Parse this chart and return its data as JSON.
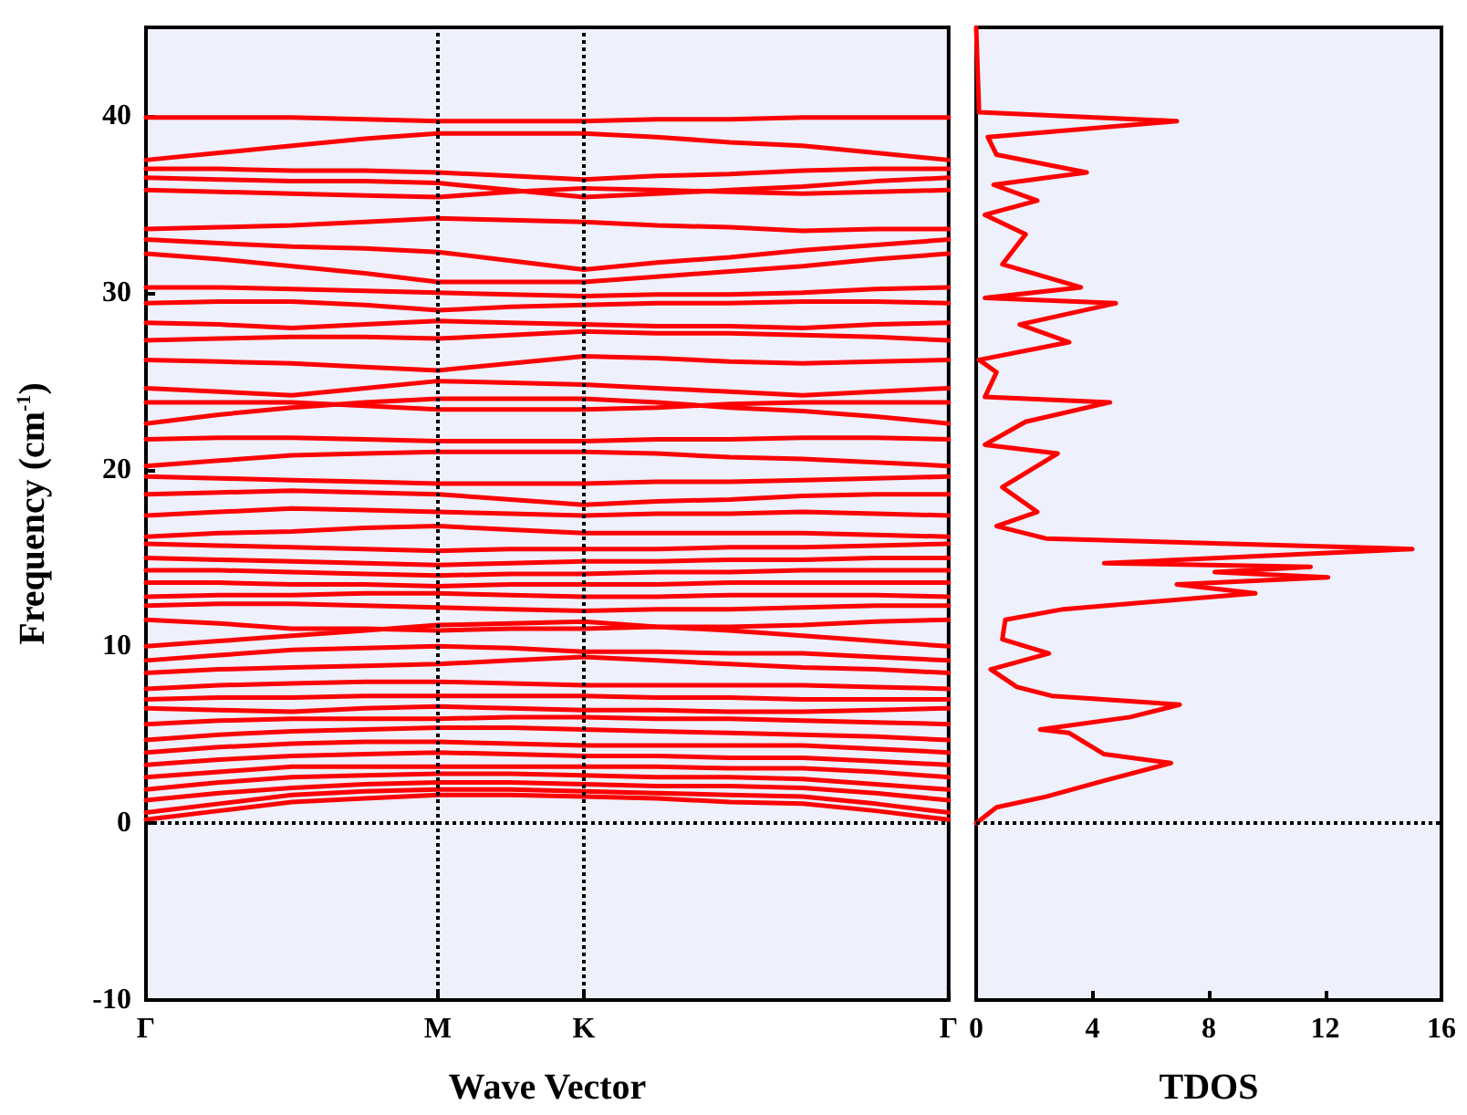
{
  "chart_data": [
    {
      "type": "line",
      "xlabel": "Wave Vector",
      "ylabel": "Frequency (cm$^{-1}$)",
      "categories": [
        "Γ",
        null,
        null,
        null,
        "M",
        null,
        "K",
        null,
        null,
        null,
        null,
        "Γ"
      ],
      "ylim": [
        -10,
        45
      ],
      "yticks": [
        -10,
        0,
        10,
        20,
        30,
        40
      ],
      "grid": false,
      "line_style": "solid",
      "ref_lines": [
        {
          "axis": "x",
          "value": "M",
          "color": "#000000",
          "line_style": "dotted"
        },
        {
          "axis": "x",
          "value": "K",
          "color": "#000000",
          "line_style": "dotted"
        },
        {
          "axis": "y",
          "value": 0,
          "color": "#000000",
          "line_style": "dotted"
        }
      ],
      "series": [
        {
          "color": "#ff0000",
          "values": [
            39.9,
            39.9,
            39.9,
            39.8,
            39.7,
            39.7,
            39.7,
            39.8,
            39.8,
            39.9,
            39.9,
            39.9
          ]
        },
        {
          "color": "#ff0000",
          "values": [
            37.5,
            37.9,
            38.3,
            38.7,
            39.0,
            39.0,
            39.0,
            38.8,
            38.5,
            38.3,
            37.9,
            37.5
          ]
        },
        {
          "color": "#ff0000",
          "values": [
            37.0,
            37.0,
            36.9,
            36.9,
            36.8,
            36.6,
            36.4,
            36.6,
            36.7,
            36.9,
            37.0,
            37.0
          ]
        },
        {
          "color": "#ff0000",
          "values": [
            36.5,
            36.4,
            36.3,
            36.3,
            36.2,
            35.8,
            35.4,
            35.6,
            35.8,
            36.0,
            36.3,
            36.5
          ]
        },
        {
          "color": "#ff0000",
          "values": [
            35.8,
            35.7,
            35.6,
            35.5,
            35.4,
            35.7,
            35.9,
            35.8,
            35.7,
            35.6,
            35.7,
            35.8
          ]
        },
        {
          "color": "#ff0000",
          "values": [
            33.6,
            33.7,
            33.8,
            34.0,
            34.2,
            34.1,
            34.0,
            33.8,
            33.7,
            33.5,
            33.6,
            33.6
          ]
        },
        {
          "color": "#ff0000",
          "values": [
            33.0,
            32.8,
            32.6,
            32.5,
            32.3,
            31.8,
            31.3,
            31.7,
            32.0,
            32.4,
            32.7,
            33.0
          ]
        },
        {
          "color": "#ff0000",
          "values": [
            32.2,
            31.9,
            31.5,
            31.1,
            30.6,
            30.6,
            30.6,
            30.9,
            31.2,
            31.5,
            31.9,
            32.2
          ]
        },
        {
          "color": "#ff0000",
          "values": [
            30.3,
            30.3,
            30.2,
            30.1,
            30.0,
            29.9,
            29.8,
            29.9,
            29.9,
            30.0,
            30.2,
            30.3
          ]
        },
        {
          "color": "#ff0000",
          "values": [
            29.4,
            29.5,
            29.5,
            29.3,
            29.0,
            29.2,
            29.3,
            29.4,
            29.4,
            29.5,
            29.5,
            29.4
          ]
        },
        {
          "color": "#ff0000",
          "values": [
            28.3,
            28.2,
            28.0,
            28.2,
            28.4,
            28.3,
            28.2,
            28.1,
            28.1,
            28.0,
            28.2,
            28.3
          ]
        },
        {
          "color": "#ff0000",
          "values": [
            27.3,
            27.4,
            27.5,
            27.5,
            27.4,
            27.6,
            27.8,
            27.7,
            27.7,
            27.6,
            27.5,
            27.3
          ]
        },
        {
          "color": "#ff0000",
          "values": [
            26.2,
            26.1,
            26.0,
            25.8,
            25.6,
            26.0,
            26.4,
            26.3,
            26.1,
            26.0,
            26.1,
            26.2
          ]
        },
        {
          "color": "#ff0000",
          "values": [
            24.6,
            24.4,
            24.2,
            24.6,
            25.0,
            24.9,
            24.8,
            24.6,
            24.4,
            24.2,
            24.4,
            24.6
          ]
        },
        {
          "color": "#ff0000",
          "values": [
            23.8,
            23.8,
            23.8,
            23.6,
            23.4,
            23.4,
            23.4,
            23.5,
            23.7,
            23.8,
            23.8,
            23.8
          ]
        },
        {
          "color": "#ff0000",
          "values": [
            22.6,
            23.1,
            23.5,
            23.8,
            24.0,
            24.0,
            24.0,
            23.8,
            23.5,
            23.3,
            23.0,
            22.6
          ]
        },
        {
          "color": "#ff0000",
          "values": [
            21.7,
            21.8,
            21.8,
            21.7,
            21.6,
            21.6,
            21.6,
            21.7,
            21.7,
            21.8,
            21.8,
            21.7
          ]
        },
        {
          "color": "#ff0000",
          "values": [
            20.2,
            20.5,
            20.8,
            20.9,
            21.0,
            21.0,
            21.0,
            20.9,
            20.7,
            20.6,
            20.4,
            20.2
          ]
        },
        {
          "color": "#ff0000",
          "values": [
            19.6,
            19.5,
            19.4,
            19.3,
            19.2,
            19.2,
            19.2,
            19.3,
            19.3,
            19.4,
            19.5,
            19.6
          ]
        },
        {
          "color": "#ff0000",
          "values": [
            18.6,
            18.7,
            18.8,
            18.7,
            18.6,
            18.3,
            18.0,
            18.2,
            18.3,
            18.5,
            18.6,
            18.6
          ]
        },
        {
          "color": "#ff0000",
          "values": [
            17.4,
            17.6,
            17.8,
            17.7,
            17.6,
            17.5,
            17.4,
            17.5,
            17.5,
            17.6,
            17.5,
            17.4
          ]
        },
        {
          "color": "#ff0000",
          "values": [
            16.2,
            16.4,
            16.5,
            16.7,
            16.8,
            16.6,
            16.4,
            16.4,
            16.4,
            16.4,
            16.3,
            16.2
          ]
        },
        {
          "color": "#ff0000",
          "values": [
            15.8,
            15.7,
            15.6,
            15.5,
            15.4,
            15.5,
            15.5,
            15.5,
            15.6,
            15.6,
            15.7,
            15.8
          ]
        },
        {
          "color": "#ff0000",
          "values": [
            15.0,
            14.9,
            14.8,
            14.7,
            14.6,
            14.7,
            14.8,
            14.8,
            14.9,
            14.9,
            15.0,
            15.0
          ]
        },
        {
          "color": "#ff0000",
          "values": [
            14.3,
            14.3,
            14.2,
            14.1,
            14.0,
            14.1,
            14.1,
            14.2,
            14.2,
            14.3,
            14.3,
            14.3
          ]
        },
        {
          "color": "#ff0000",
          "values": [
            13.6,
            13.6,
            13.5,
            13.5,
            13.4,
            13.5,
            13.5,
            13.5,
            13.6,
            13.6,
            13.6,
            13.6
          ]
        },
        {
          "color": "#ff0000",
          "values": [
            12.8,
            12.9,
            12.9,
            13.0,
            13.0,
            12.9,
            12.8,
            12.8,
            12.9,
            12.9,
            12.9,
            12.8
          ]
        },
        {
          "color": "#ff0000",
          "values": [
            12.3,
            12.4,
            12.4,
            12.3,
            12.2,
            12.1,
            12.0,
            12.1,
            12.1,
            12.2,
            12.3,
            12.3
          ]
        },
        {
          "color": "#ff0000",
          "values": [
            11.5,
            11.3,
            11.0,
            11.0,
            10.9,
            11.0,
            11.0,
            11.1,
            11.1,
            11.2,
            11.4,
            11.5
          ]
        },
        {
          "color": "#ff0000",
          "values": [
            10.0,
            10.3,
            10.6,
            10.9,
            11.2,
            11.3,
            11.4,
            11.1,
            10.9,
            10.6,
            10.3,
            10.0
          ]
        },
        {
          "color": "#ff0000",
          "values": [
            9.2,
            9.5,
            9.8,
            9.9,
            10.0,
            9.9,
            9.7,
            9.7,
            9.6,
            9.6,
            9.4,
            9.2
          ]
        },
        {
          "color": "#ff0000",
          "values": [
            8.5,
            8.7,
            8.8,
            8.9,
            9.0,
            9.2,
            9.4,
            9.2,
            9.0,
            8.8,
            8.7,
            8.5
          ]
        },
        {
          "color": "#ff0000",
          "values": [
            7.6,
            7.8,
            7.9,
            8.0,
            8.0,
            7.9,
            7.8,
            7.8,
            7.8,
            7.8,
            7.7,
            7.6
          ]
        },
        {
          "color": "#ff0000",
          "values": [
            7.0,
            7.1,
            7.1,
            7.2,
            7.2,
            7.2,
            7.2,
            7.1,
            7.1,
            7.0,
            7.0,
            7.0
          ]
        },
        {
          "color": "#ff0000",
          "values": [
            6.5,
            6.4,
            6.3,
            6.5,
            6.6,
            6.5,
            6.4,
            6.4,
            6.3,
            6.3,
            6.4,
            6.5
          ]
        },
        {
          "color": "#ff0000",
          "values": [
            5.6,
            5.8,
            5.9,
            5.9,
            5.9,
            6.0,
            6.0,
            5.9,
            5.9,
            5.8,
            5.7,
            5.6
          ]
        },
        {
          "color": "#ff0000",
          "values": [
            4.7,
            5.0,
            5.2,
            5.3,
            5.4,
            5.4,
            5.3,
            5.2,
            5.1,
            5.0,
            4.9,
            4.7
          ]
        },
        {
          "color": "#ff0000",
          "values": [
            4.0,
            4.3,
            4.5,
            4.6,
            4.6,
            4.5,
            4.4,
            4.4,
            4.4,
            4.4,
            4.2,
            4.0
          ]
        },
        {
          "color": "#ff0000",
          "values": [
            3.3,
            3.6,
            3.8,
            3.9,
            4.0,
            3.9,
            3.8,
            3.8,
            3.7,
            3.7,
            3.5,
            3.3
          ]
        },
        {
          "color": "#ff0000",
          "values": [
            2.6,
            2.9,
            3.2,
            3.2,
            3.2,
            3.2,
            3.2,
            3.2,
            3.1,
            3.1,
            2.9,
            2.6
          ]
        },
        {
          "color": "#ff0000",
          "values": [
            1.9,
            2.3,
            2.6,
            2.7,
            2.8,
            2.8,
            2.7,
            2.6,
            2.6,
            2.5,
            2.2,
            1.9
          ]
        },
        {
          "color": "#ff0000",
          "values": [
            1.3,
            1.7,
            2.0,
            2.2,
            2.3,
            2.3,
            2.2,
            2.1,
            2.1,
            2.0,
            1.7,
            1.3
          ]
        },
        {
          "color": "#ff0000",
          "values": [
            0.6,
            1.1,
            1.6,
            1.8,
            1.9,
            1.9,
            1.8,
            1.7,
            1.6,
            1.5,
            1.1,
            0.6
          ]
        },
        {
          "color": "#ff0000",
          "values": [
            0.2,
            0.7,
            1.2,
            1.4,
            1.6,
            1.6,
            1.5,
            1.4,
            1.2,
            1.1,
            0.7,
            0.2
          ]
        }
      ]
    },
    {
      "type": "line",
      "xlabel": "TDOS",
      "xlim": [
        0,
        16
      ],
      "xticks": [
        0,
        4,
        8,
        12,
        16
      ],
      "ylim": [
        -10,
        45
      ],
      "tick_labels": "x",
      "grid": false,
      "line_style": "solid",
      "ref_lines": [
        {
          "axis": "y",
          "value": 0,
          "color": "#000000",
          "line_style": "dotted"
        }
      ],
      "series": [
        {
          "color": "#ff0000",
          "x": [
            0,
            0.7,
            2.4,
            4.4,
            6.7,
            4.4,
            3.2,
            2.2,
            5.3,
            7.0,
            2.6,
            1.4,
            0.5,
            2.5,
            0.9,
            1.0,
            3.0,
            9.6,
            6.9,
            12.1,
            8.2,
            11.5,
            4.4,
            15.0,
            2.4,
            0.7,
            2.1,
            0.9,
            2.8,
            0.3,
            1.7,
            4.6,
            0.3,
            0.7,
            0.1,
            3.2,
            1.5,
            4.8,
            0.3,
            3.6,
            0.9,
            1.7,
            0.3,
            2.1,
            0.6,
            3.8,
            0.7,
            0.4,
            6.9,
            0.1,
            0
          ],
          "values": [
            0,
            0.9,
            1.5,
            2.4,
            3.4,
            3.9,
            5.1,
            5.3,
            6.0,
            6.7,
            7.2,
            7.7,
            8.7,
            9.6,
            10.4,
            11.5,
            12.1,
            13.0,
            13.5,
            13.9,
            14.2,
            14.5,
            14.7,
            15.5,
            16.1,
            16.8,
            17.6,
            19.0,
            20.9,
            21.4,
            22.7,
            23.8,
            24.1,
            25.5,
            26.2,
            27.2,
            28.2,
            29.4,
            29.7,
            30.3,
            31.6,
            33.3,
            34.4,
            35.2,
            36.1,
            36.8,
            37.8,
            38.8,
            39.7,
            40.2,
            45
          ]
        }
      ]
    }
  ]
}
